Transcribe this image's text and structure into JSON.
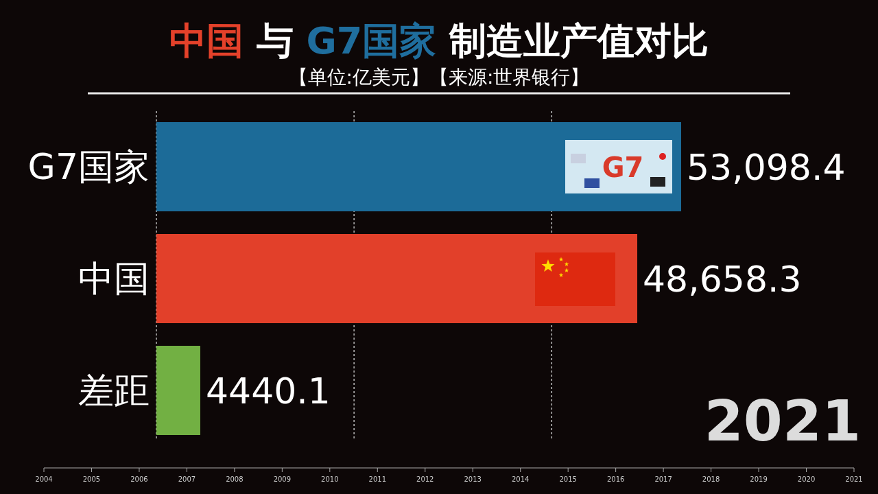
{
  "chart_data": {
    "type": "bar",
    "orientation": "horizontal",
    "title": "中国 与 G7国家 制造业产值对比",
    "subtitle": "【单位:亿美元】【来源:世界银行】",
    "categories": [
      "G7国家",
      "中国",
      "差距"
    ],
    "values": [
      53098.4,
      48658.3,
      4440.1
    ],
    "colors": [
      "#1c6b98",
      "#e2402a",
      "#72b043"
    ],
    "value_labels": [
      "53,098.4",
      "48,658.3",
      "4440.1"
    ],
    "ref_lines": [
      {
        "axis": "x",
        "value": 0,
        "color": "#bbbbbb",
        "line_style": "dotted"
      },
      {
        "axis": "x",
        "value": 20000,
        "color": "#bbbbbb",
        "line_style": "dotted"
      },
      {
        "axis": "x",
        "value": 40000,
        "color": "#bbbbbb",
        "line_style": "dotted"
      }
    ],
    "annotations": [
      "2021",
      "G7",
      "2004",
      "2005",
      "2006",
      "2007",
      "2008",
      "2009",
      "2010",
      "2011",
      "2012",
      "2013",
      "2014",
      "2015",
      "2016",
      "2017",
      "2018",
      "2019",
      "2020",
      "2021"
    ]
  }
}
